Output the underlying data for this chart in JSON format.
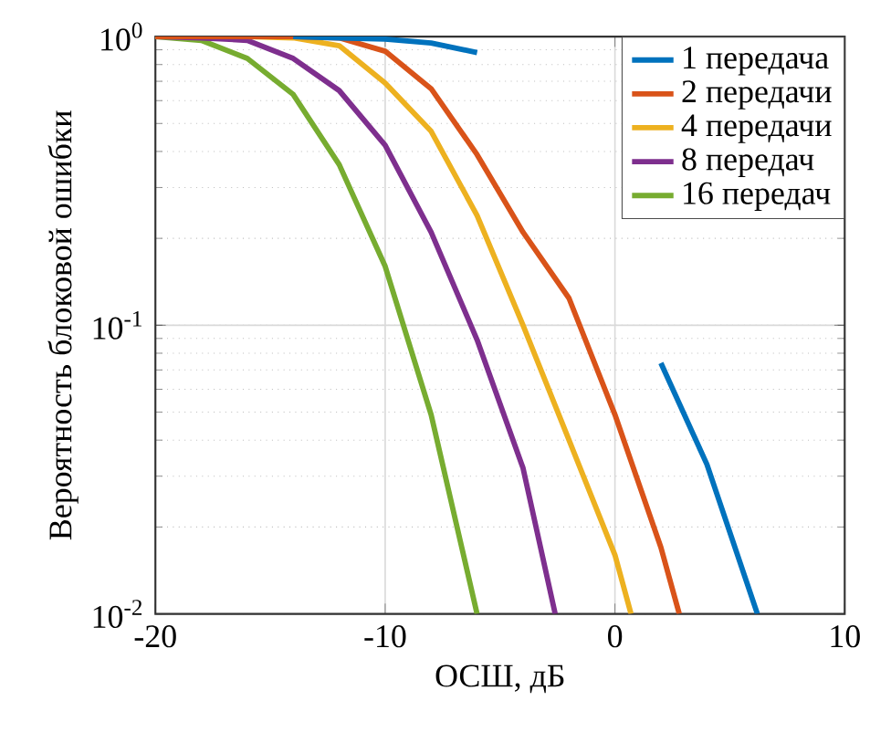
{
  "chart_data": {
    "type": "line",
    "xlabel": "ОСШ, дБ",
    "ylabel": "Вероятность блоковой ошибки",
    "series": [
      {
        "name": "1 передача",
        "color": "#0072bd",
        "x": [
          -14,
          -12,
          -10,
          -8,
          -6,
          -4,
          -2,
          0,
          2,
          4,
          6.2
        ],
        "values": [
          1,
          0.99,
          0.98,
          0.95,
          0.88,
          null,
          null,
          null,
          0.074,
          0.033,
          0.01
        ]
      },
      {
        "name": "2 передачи",
        "color": "#d95319",
        "x": [
          -20,
          -18,
          -16,
          -14,
          -12,
          -10,
          -8,
          -6,
          -4,
          -2,
          0,
          2,
          2.8
        ],
        "values": [
          1,
          1,
          1,
          1,
          0.99,
          0.89,
          0.66,
          0.39,
          0.21,
          0.124,
          0.049,
          0.017,
          0.01
        ]
      },
      {
        "name": "4 передачи",
        "color": "#edb120",
        "x": [
          -20,
          -18,
          -16,
          -14,
          -12,
          -10,
          -8,
          -6,
          -4,
          -2,
          0,
          0.7
        ],
        "values": [
          1,
          1,
          1,
          0.99,
          0.93,
          0.69,
          0.47,
          0.24,
          0.1,
          0.04,
          0.016,
          0.01
        ]
      },
      {
        "name": "8 передач",
        "color": "#7e2f8e",
        "x": [
          -20,
          -18,
          -16,
          -14,
          -12,
          -10,
          -8,
          -6,
          -4,
          -2.6
        ],
        "values": [
          1,
          0.99,
          0.97,
          0.84,
          0.65,
          0.42,
          0.21,
          0.089,
          0.032,
          0.01
        ]
      },
      {
        "name": "16 передач",
        "color": "#77ac30",
        "x": [
          -20,
          -18,
          -16,
          -14,
          -12,
          -10,
          -8,
          -6
        ],
        "values": [
          1,
          0.97,
          0.84,
          0.63,
          0.36,
          0.16,
          0.049,
          0.01
        ]
      }
    ],
    "xlim": [
      -20,
      10
    ],
    "ylim": [
      0.01,
      1
    ],
    "xticks": [
      -20,
      -10,
      0,
      10
    ],
    "yticks": [
      {
        "value": 0.01,
        "label": "10$^{-2}$"
      },
      {
        "value": 0.1,
        "label": "10$^{-1}$"
      },
      {
        "value": 1,
        "label": "10$^{0}$"
      }
    ],
    "log": "y",
    "grid": true,
    "legend": "top right"
  }
}
